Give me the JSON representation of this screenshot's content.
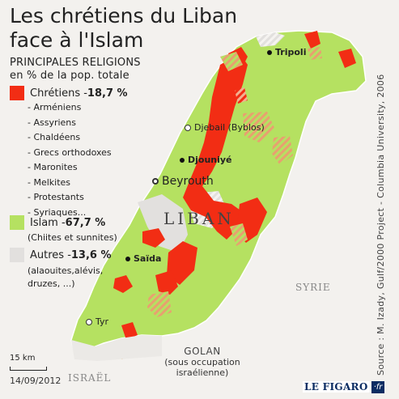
{
  "title_line1": "Les chrétiens du Liban",
  "title_line2": "face à l'Islam",
  "subtitle_line1": "PRINCIPALES RELIGIONS",
  "subtitle_line2": "en % de la pop. totale",
  "colors": {
    "christians": "#f22d14",
    "islam": "#b5e161",
    "others": "#e2e0de",
    "background": "#f3f1ee",
    "hatch": "#e8a070"
  },
  "legend": {
    "christians": {
      "label": "Chrétiens - ",
      "value": "18,7 %"
    },
    "islam": {
      "label": "Islam - ",
      "value": "67,7 %",
      "note": "(Chiites et sunnites)"
    },
    "others": {
      "label": "Autres - ",
      "value": "13,6 %",
      "note_line1": "(alaouites,alévis,",
      "note_line2": "druzes, ...)"
    }
  },
  "christian_groups": [
    "- Arméniens",
    "- Assyriens",
    "- Chaldéens",
    "- Grecs orthodoxes",
    "- Maronites",
    "- Melkites",
    "- Protestants",
    "- Syriaques..."
  ],
  "cities": {
    "tripoli": "Tripoli",
    "djebail": "Djebail (Byblos)",
    "djouniye": "Djouniyé",
    "beyrouth": "Beyrouth",
    "saida": "Saïda",
    "tyr": "Tyr"
  },
  "country_labels": {
    "liban": "LIBAN",
    "syrie": "SYRIE",
    "israel": "ISRAËL"
  },
  "golan": {
    "title": "GOLAN",
    "line1": "(sous occupation",
    "line2": "israélienne)"
  },
  "scale_label": "15 km",
  "date": "14/09/2012",
  "source": "Source : M. Izady, Gulf/2000 Project - Columbia University, 2006",
  "logo": {
    "name": "LE FIGARO",
    "suffix": "·fr"
  },
  "icons": {
    "tripoli_marker": "city-dot-icon",
    "capital_marker": "capital-circle-icon"
  }
}
